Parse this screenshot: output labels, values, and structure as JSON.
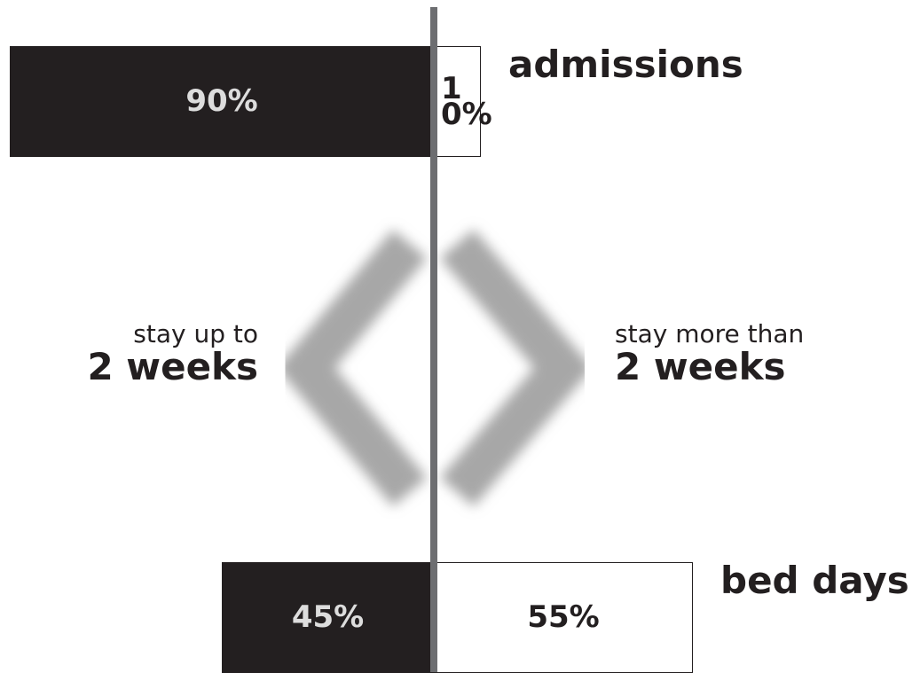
{
  "chart_data": {
    "type": "diverging_bar",
    "categories": [
      "admissions",
      "bed days"
    ],
    "series": [
      {
        "name_lines": [
          "stay up to",
          "2 weeks"
        ],
        "color": "#231f20",
        "values": [
          90,
          45
        ],
        "value_labels": [
          "90%",
          "45%"
        ]
      },
      {
        "name_lines": [
          "stay more than",
          "2 weeks"
        ],
        "color": "#ffffff",
        "values": [
          10,
          55
        ],
        "value_labels": [
          "10%",
          "55%"
        ]
      }
    ]
  }
}
